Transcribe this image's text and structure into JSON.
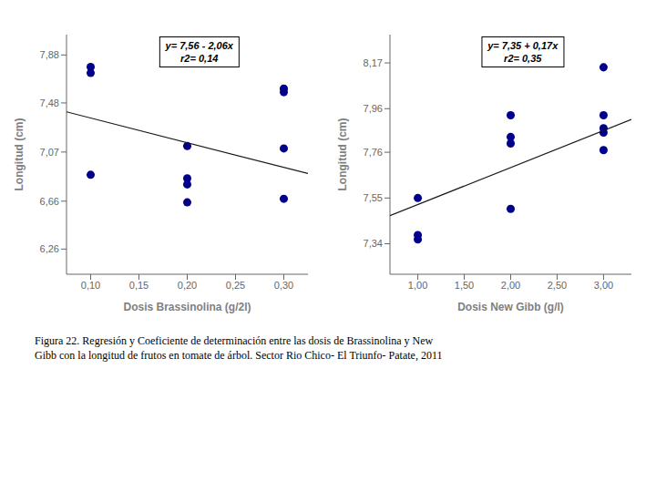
{
  "chart_data": [
    {
      "type": "scatter",
      "x_label": "Dosis Brassinolina (g/2l)",
      "y_label": "Longitud (cm)",
      "annotations": [
        "y= 7,56 - 2,06x",
        "r2= 0,14"
      ],
      "series": [
        {
          "type": "scatter",
          "color": "#00008B",
          "marker": "circle",
          "x": [
            0.1,
            0.1,
            0.1,
            0.2,
            0.2,
            0.2,
            0.2,
            0.3,
            0.3,
            0.3,
            0.3
          ],
          "values": [
            7.78,
            7.73,
            6.88,
            7.12,
            6.85,
            6.8,
            6.65,
            7.6,
            7.57,
            7.1,
            6.68
          ]
        },
        {
          "type": "line",
          "color": "#1a1a1a",
          "line_style": "solid",
          "x": [
            0.075,
            0.325
          ],
          "values": [
            7.4055,
            6.8905
          ]
        }
      ],
      "xlim": [
        0.075,
        0.325
      ],
      "ylim": [
        6.05,
        8.05
      ],
      "xticks": [
        {
          "value": 0.1,
          "label": "0,10"
        },
        {
          "value": 0.15,
          "label": "0,15"
        },
        {
          "value": 0.2,
          "label": "0,20"
        },
        {
          "value": 0.25,
          "label": "0,25"
        },
        {
          "value": 0.3,
          "label": "0,30"
        }
      ],
      "yticks": [
        {
          "value": 6.26,
          "label": "6,26"
        },
        {
          "value": 6.66,
          "label": "6,66"
        },
        {
          "value": 7.07,
          "label": "7,07"
        },
        {
          "value": 7.48,
          "label": "7,48"
        },
        {
          "value": 7.88,
          "label": "7,88"
        }
      ],
      "grid": false
    },
    {
      "type": "scatter",
      "x_label": "Dosis New Gibb (g/l)",
      "y_label": "Longitud (cm)",
      "annotations": [
        "y= 7,35 + 0,17x",
        "r2= 0,35"
      ],
      "series": [
        {
          "type": "scatter",
          "color": "#00008B",
          "marker": "circle",
          "x": [
            1.0,
            1.0,
            1.0,
            2.0,
            2.0,
            2.0,
            2.0,
            3.0,
            3.0,
            3.0,
            3.0,
            3.0
          ],
          "values": [
            7.55,
            7.38,
            7.36,
            7.93,
            7.83,
            7.8,
            7.5,
            8.15,
            7.93,
            7.87,
            7.85,
            7.77
          ]
        },
        {
          "type": "line",
          "color": "#1a1a1a",
          "line_style": "solid",
          "x": [
            0.7,
            3.3
          ],
          "values": [
            7.469,
            7.911
          ]
        }
      ],
      "xlim": [
        0.7,
        3.3
      ],
      "ylim": [
        7.2,
        8.3
      ],
      "xticks": [
        {
          "value": 1.0,
          "label": "1,00"
        },
        {
          "value": 1.5,
          "label": "1,50"
        },
        {
          "value": 2.0,
          "label": "2,00"
        },
        {
          "value": 2.5,
          "label": "2,50"
        },
        {
          "value": 3.0,
          "label": "3,00"
        }
      ],
      "yticks": [
        {
          "value": 7.34,
          "label": "7,34"
        },
        {
          "value": 7.55,
          "label": "7,55"
        },
        {
          "value": 7.76,
          "label": "7,76"
        },
        {
          "value": 7.96,
          "label": "7,96"
        },
        {
          "value": 8.17,
          "label": "8,17"
        }
      ],
      "grid": false
    }
  ],
  "caption": [
    "Figura 22. Regresión y Coeficiente de determinación entre las dosis de Brassinolina y New",
    "Gibb con la longitud de frutos en tomate de árbol.  Sector Rio Chico- El Triunfo- Patate, 2011"
  ]
}
